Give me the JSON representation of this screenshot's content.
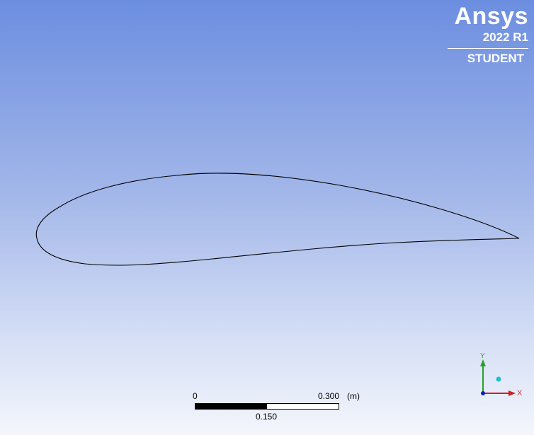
{
  "watermark": {
    "brand": "Ansys",
    "version": "2022 R1",
    "edition": "STUDENT"
  },
  "scale_bar": {
    "start_label": "0",
    "end_label": "0.300",
    "unit_label": "(m)",
    "mid_label": "0.150"
  },
  "triad": {
    "y_label": "Y",
    "x_label": "X",
    "colors": {
      "y_axis": "#2aa02a",
      "x_axis": "#d02020",
      "z_point": "#20c0c8",
      "origin": "#1020c0"
    }
  },
  "colors": {
    "background_top": "#6c8ee0",
    "background_bottom": "#f4f6fc",
    "geometry_line": "#000000"
  }
}
